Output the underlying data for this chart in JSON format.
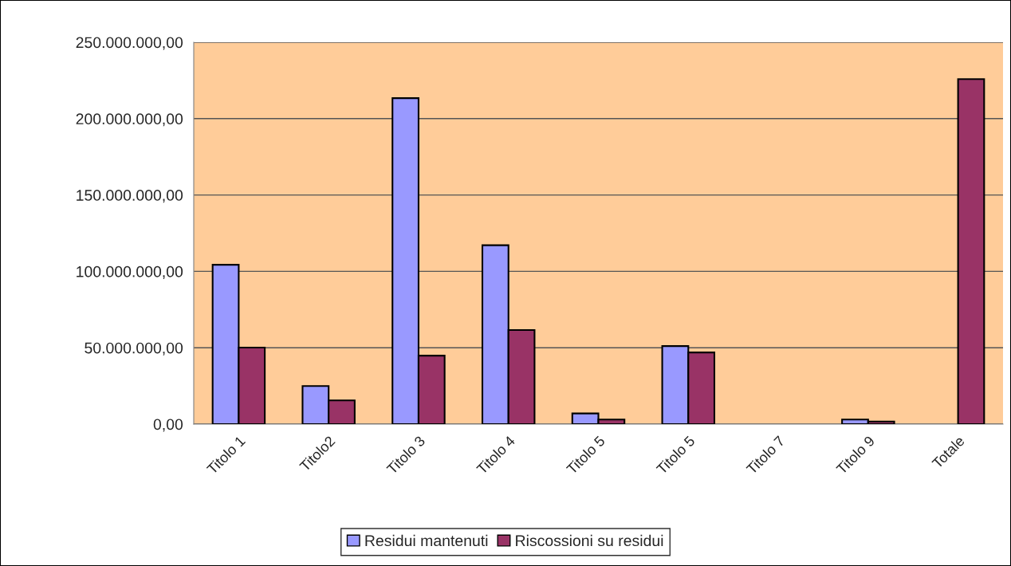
{
  "chart_data": {
    "type": "bar",
    "categories": [
      "Titolo 1",
      "Titolo2",
      "Titolo 3",
      "Titolo 4",
      "Titolo 5",
      "Titolo 5",
      "Titolo 7",
      "Titolo 9",
      "Totale"
    ],
    "series": [
      {
        "name": "Residui mantenuti",
        "color": "#9999ff",
        "values": [
          104300000,
          24900000,
          213400000,
          117100000,
          7000000,
          51100000,
          null,
          3000000,
          null
        ]
      },
      {
        "name": "Riscossioni su residui",
        "color": "#993366",
        "values": [
          50100000,
          15500000,
          44800000,
          61600000,
          3000000,
          46900000,
          null,
          1700000,
          225900000
        ]
      }
    ],
    "ylim": [
      0,
      250000000
    ],
    "yticks": [
      {
        "value": 0,
        "label": "0,00"
      },
      {
        "value": 50000000,
        "label": "50.000.000,00"
      },
      {
        "value": 100000000,
        "label": "100.000.000,00"
      },
      {
        "value": 150000000,
        "label": "150.000.000,00"
      },
      {
        "value": 200000000,
        "label": "200.000.000,00"
      },
      {
        "value": 250000000,
        "label": "250.000.000,00"
      }
    ],
    "grid": "y",
    "legend": "bottom"
  }
}
